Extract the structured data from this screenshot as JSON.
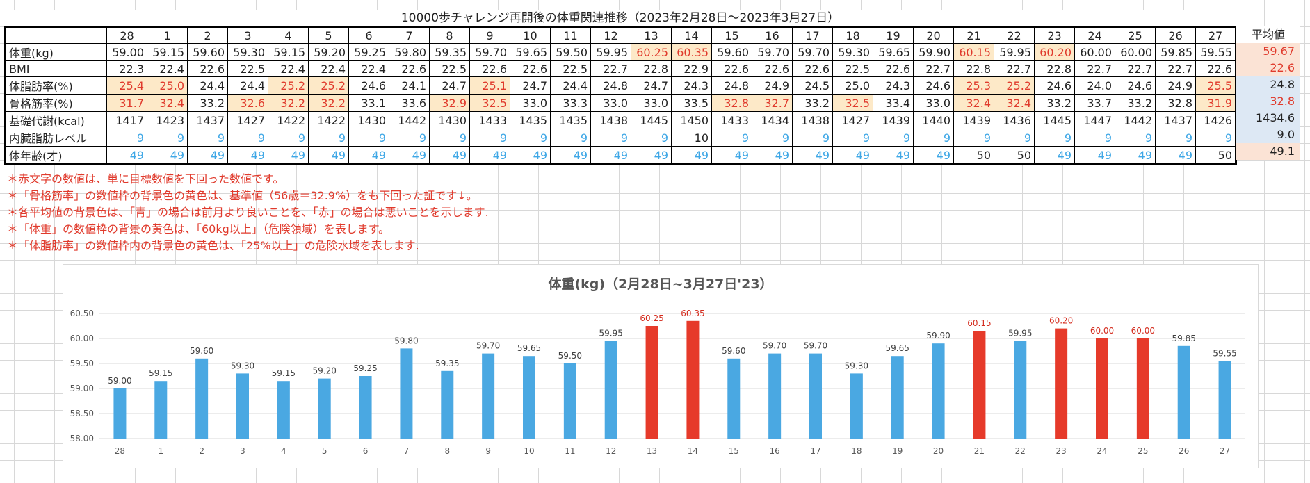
{
  "sheet": {
    "title": "10000歩チャレンジ再開後の体重関連推移（2023年2月28日～2023年3月27日）",
    "days": [
      "28",
      "1",
      "2",
      "3",
      "4",
      "5",
      "6",
      "7",
      "8",
      "9",
      "10",
      "11",
      "12",
      "13",
      "14",
      "15",
      "16",
      "17",
      "18",
      "19",
      "20",
      "21",
      "22",
      "23",
      "24",
      "25",
      "26",
      "27"
    ],
    "avg_header": "平均値",
    "rows": [
      {
        "label": "体重(kg)",
        "values": [
          "59.00",
          "59.15",
          "59.60",
          "59.30",
          "59.15",
          "59.20",
          "59.25",
          "59.80",
          "59.35",
          "59.70",
          "59.65",
          "59.50",
          "59.95",
          "60.25",
          "60.35",
          "59.60",
          "59.70",
          "59.70",
          "59.30",
          "59.65",
          "59.90",
          "60.15",
          "59.95",
          "60.20",
          "60.00",
          "60.00",
          "59.85",
          "59.55"
        ],
        "red": [
          13,
          14,
          21,
          23
        ],
        "yellow": [
          13,
          14,
          21,
          23
        ],
        "blue": [],
        "avg": "59.67",
        "avg_bg": "#fbe3d5",
        "avg_color": "#e03a2c"
      },
      {
        "label": "BMI",
        "values": [
          "22.3",
          "22.4",
          "22.6",
          "22.5",
          "22.4",
          "22.4",
          "22.4",
          "22.6",
          "22.5",
          "22.6",
          "22.6",
          "22.5",
          "22.7",
          "22.8",
          "22.9",
          "22.6",
          "22.6",
          "22.6",
          "22.5",
          "22.6",
          "22.7",
          "22.8",
          "22.7",
          "22.8",
          "22.7",
          "22.7",
          "22.7",
          "22.6"
        ],
        "red": [],
        "yellow": [],
        "blue": [],
        "avg": "22.6",
        "avg_bg": "#fbe3d5",
        "avg_color": "#e03a2c"
      },
      {
        "label": "体脂肪率(%)",
        "values": [
          "25.4",
          "25.0",
          "24.4",
          "24.4",
          "25.2",
          "25.2",
          "24.6",
          "24.1",
          "24.7",
          "25.1",
          "24.7",
          "24.4",
          "24.8",
          "24.7",
          "24.3",
          "24.8",
          "24.9",
          "24.5",
          "25.0",
          "24.3",
          "24.6",
          "25.3",
          "25.2",
          "24.6",
          "24.0",
          "24.6",
          "24.9",
          "25.5"
        ],
        "red": [
          0,
          1,
          4,
          5,
          9,
          21,
          22,
          27
        ],
        "yellow": [
          0,
          1,
          4,
          5,
          9,
          21,
          22,
          27
        ],
        "blue": [],
        "avg": "24.8",
        "avg_bg": "#dde8f4",
        "avg_color": "#222222"
      },
      {
        "label": "骨格筋率(%)",
        "values": [
          "31.7",
          "32.4",
          "33.2",
          "32.6",
          "32.2",
          "32.2",
          "33.1",
          "33.6",
          "32.9",
          "32.5",
          "33.0",
          "33.3",
          "33.0",
          "33.0",
          "33.5",
          "32.8",
          "32.7",
          "33.2",
          "32.5",
          "33.4",
          "33.0",
          "32.4",
          "32.4",
          "33.2",
          "33.7",
          "33.2",
          "32.8",
          "31.9"
        ],
        "red": [
          0,
          1,
          3,
          4,
          5,
          8,
          9,
          15,
          16,
          18,
          21,
          22,
          27
        ],
        "yellow": [
          0,
          1,
          3,
          4,
          5,
          8,
          9,
          15,
          16,
          18,
          21,
          22,
          27
        ],
        "blue": [],
        "avg": "32.8",
        "avg_bg": "#dde8f4",
        "avg_color": "#e03a2c"
      },
      {
        "label": "基礎代謝(kcal)",
        "values": [
          "1417",
          "1423",
          "1437",
          "1427",
          "1422",
          "1422",
          "1430",
          "1442",
          "1430",
          "1433",
          "1435",
          "1435",
          "1438",
          "1445",
          "1450",
          "1433",
          "1434",
          "1438",
          "1427",
          "1439",
          "1440",
          "1439",
          "1436",
          "1445",
          "1447",
          "1442",
          "1437",
          "1426"
        ],
        "red": [],
        "yellow": [],
        "blue": [],
        "avg": "1434.6",
        "avg_bg": "#dde8f4",
        "avg_color": "#222222"
      },
      {
        "label": "内臓脂肪レベル",
        "values": [
          "9",
          "9",
          "9",
          "9",
          "9",
          "9",
          "9",
          "9",
          "9",
          "9",
          "9",
          "9",
          "9",
          "9",
          "10",
          "9",
          "9",
          "9",
          "9",
          "9",
          "9",
          "9",
          "9",
          "9",
          "9",
          "9",
          "9",
          "9"
        ],
        "red": [],
        "yellow": [],
        "blue": [
          0,
          1,
          2,
          3,
          4,
          5,
          6,
          7,
          8,
          9,
          10,
          11,
          12,
          13,
          15,
          16,
          17,
          18,
          19,
          20,
          21,
          22,
          23,
          24,
          25,
          26,
          27
        ],
        "avg": "9.0",
        "avg_bg": "#dde8f4",
        "avg_color": "#222222"
      },
      {
        "label": "体年齢(才)",
        "values": [
          "49",
          "49",
          "49",
          "49",
          "49",
          "49",
          "49",
          "49",
          "49",
          "49",
          "49",
          "49",
          "49",
          "49",
          "49",
          "49",
          "49",
          "49",
          "49",
          "49",
          "49",
          "50",
          "50",
          "49",
          "49",
          "49",
          "49",
          "50"
        ],
        "red": [],
        "yellow": [],
        "blue": [
          0,
          1,
          2,
          3,
          4,
          5,
          6,
          7,
          8,
          9,
          10,
          11,
          12,
          13,
          14,
          15,
          16,
          17,
          18,
          19,
          20,
          23,
          24,
          25,
          26
        ],
        "avg": "49.1",
        "avg_bg": "#fbe3d5",
        "avg_color": "#222222"
      }
    ],
    "notes": [
      "＊赤文字の数値は、単に目標数値を下回った数値です。",
      "＊「骨格筋率」の数値枠の背景色の黄色は、基準値（56歳＝32.9%）をも下回った証です↓。",
      "＊各平均値の背景色は、「青」の場合は前月より良いことを、「赤」の場合は悪いことを示します.",
      "＊「体重」の数値枠の背景の黄色は、「60kg以上」（危険領域）を表します。",
      "＊「体脂肪率」の数値枠内の背景色の黄色は、「25%以上」の危険水域を表します."
    ]
  },
  "colors": {
    "bar_blue": "#4aa8e2",
    "bar_red": "#e63a2a",
    "label_red": "#d42c1e"
  },
  "chart_data": {
    "type": "bar",
    "title": "体重(kg)（2月28日~3月27日'23）",
    "categories": [
      "28",
      "1",
      "2",
      "3",
      "4",
      "5",
      "6",
      "7",
      "8",
      "9",
      "10",
      "11",
      "12",
      "13",
      "14",
      "15",
      "16",
      "17",
      "18",
      "19",
      "20",
      "21",
      "22",
      "23",
      "24",
      "25",
      "26",
      "27"
    ],
    "values": [
      59.0,
      59.15,
      59.6,
      59.3,
      59.15,
      59.2,
      59.25,
      59.8,
      59.35,
      59.7,
      59.65,
      59.5,
      59.95,
      60.25,
      60.35,
      59.6,
      59.7,
      59.7,
      59.3,
      59.65,
      59.9,
      60.15,
      59.95,
      60.2,
      60.0,
      60.0,
      59.85,
      59.55
    ],
    "value_labels": [
      "59.00",
      "59.15",
      "59.60",
      "59.30",
      "59.15",
      "59.20",
      "59.25",
      "59.80",
      "59.35",
      "59.70",
      "59.65",
      "59.50",
      "59.95",
      "60.25",
      "60.35",
      "59.60",
      "59.70",
      "59.70",
      "59.30",
      "59.65",
      "59.90",
      "60.15",
      "59.95",
      "60.20",
      "60.00",
      "60.00",
      "59.85",
      "59.55"
    ],
    "red_threshold": 60.0,
    "ylim": [
      58.0,
      60.5
    ],
    "yticks": [
      "58.00",
      "58.50",
      "59.00",
      "59.50",
      "60.00",
      "60.50"
    ],
    "grid": true,
    "legend": "none",
    "xlabel": "",
    "ylabel": ""
  }
}
